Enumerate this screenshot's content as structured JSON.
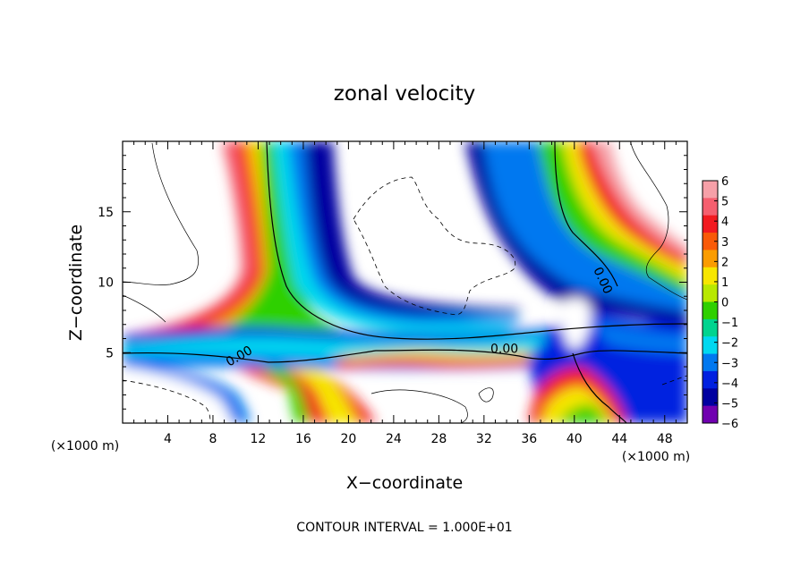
{
  "chart_data": {
    "type": "heatmap",
    "title": "zonal velocity",
    "xlabel": "X−coordinate",
    "ylabel": "Z−coordinate",
    "x_unit_note_left": "(×1000 m)",
    "x_unit_note_right": "(×1000 m)",
    "footer": "CONTOUR INTERVAL = 1.000E+01",
    "xlim": [
      0,
      50
    ],
    "ylim": [
      0,
      20
    ],
    "x_ticks": [
      4,
      8,
      12,
      16,
      20,
      24,
      28,
      32,
      36,
      40,
      44,
      48
    ],
    "y_ticks": [
      5,
      10,
      15
    ],
    "colorbar": {
      "ticks": [
        6,
        5,
        4,
        3,
        2,
        1,
        0,
        -1,
        -2,
        -3,
        -4,
        -5,
        -6
      ],
      "range": [
        -6,
        6
      ],
      "colors": [
        "#f6a0a8",
        "#f55f6f",
        "#f21a20",
        "#f95a08",
        "#fb9c00",
        "#f7e600",
        "#b8e800",
        "#2fd000",
        "#00d48f",
        "#00d8f0",
        "#0078f0",
        "#0020e0",
        "#0000a0",
        "#7000b0"
      ]
    },
    "contour_labels": [
      {
        "text": "0.00",
        "x": 10.5,
        "z": 4.5
      },
      {
        "text": "0.00",
        "x": 33.8,
        "z": 5.0
      },
      {
        "text": "0.00",
        "x": 42.2,
        "z": 10.0
      }
    ]
  }
}
